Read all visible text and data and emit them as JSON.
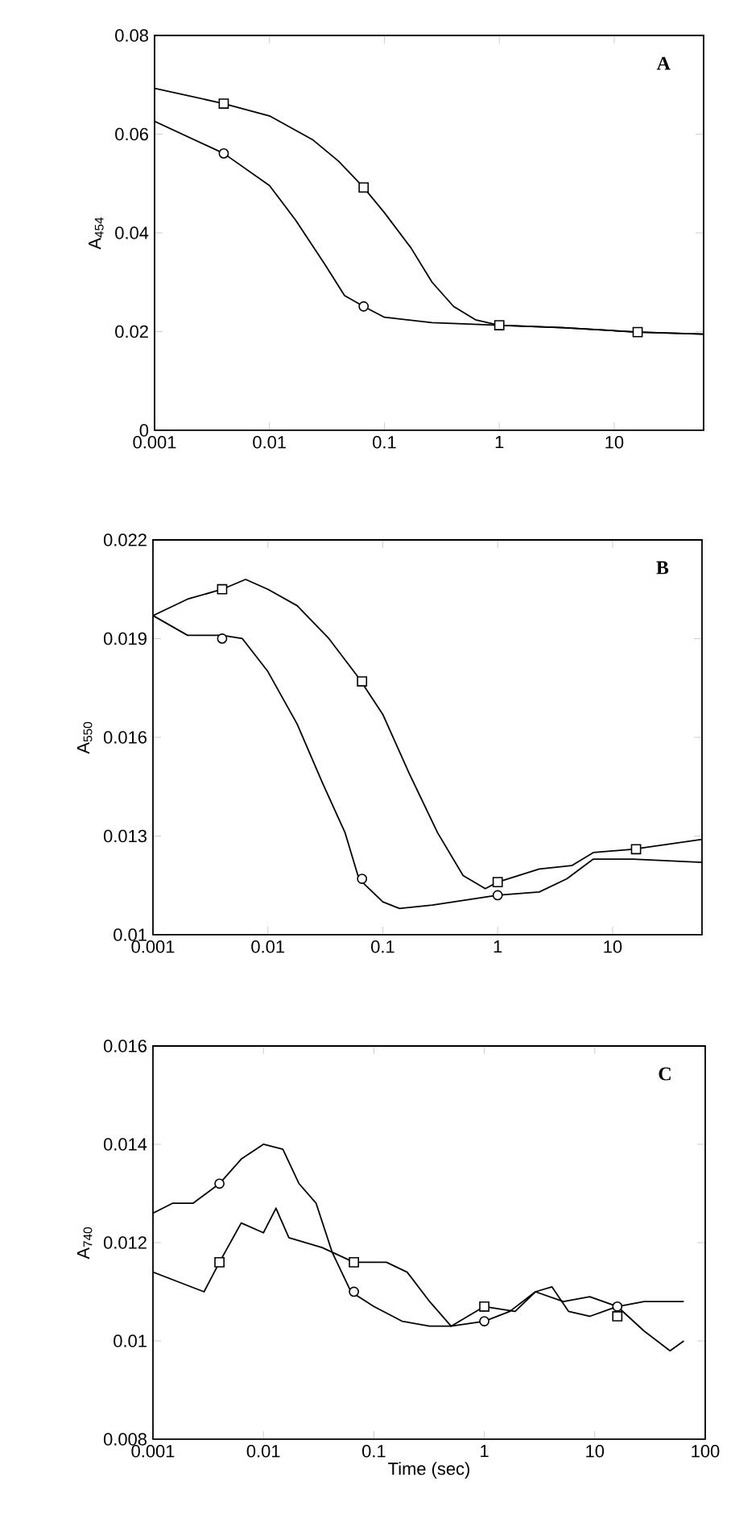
{
  "chart_data": [
    {
      "type": "line",
      "log": "x",
      "ylabel": "A$_{454}$",
      "annotations": [
        "A"
      ],
      "xlim": [
        0.001,
        60
      ],
      "xticks": [
        0.001,
        0.01,
        0.1,
        1,
        10
      ],
      "ylim": [
        0,
        0.08
      ],
      "yticks": [
        0,
        0.02,
        0.04,
        0.06,
        0.08
      ],
      "series": [
        {
          "color": "#000000",
          "x": [
            0.001,
            0.004,
            0.01,
            0.024,
            0.04,
            0.066,
            0.1,
            0.17,
            0.26,
            0.4,
            0.62,
            1,
            3.6,
            16,
            60
          ],
          "values": [
            0.0693,
            0.0662,
            0.0637,
            0.0588,
            0.0545,
            0.0492,
            0.0441,
            0.037,
            0.03,
            0.0251,
            0.0224,
            0.0213,
            0.0208,
            0.0199,
            0.0195
          ]
        },
        {
          "color": "#000000",
          "x": [
            0.001,
            0.004,
            0.01,
            0.017,
            0.03,
            0.045,
            0.066,
            0.1,
            0.26,
            1,
            3.6,
            16,
            60
          ],
          "values": [
            0.0626,
            0.0561,
            0.0496,
            0.0425,
            0.0338,
            0.0273,
            0.0251,
            0.0229,
            0.0218,
            0.0213,
            0.0208,
            0.0199,
            0.0195
          ]
        },
        {
          "type": "scatter",
          "marker": "square",
          "color": "#000000",
          "x": [
            0.004,
            0.066,
            1,
            16
          ],
          "values": [
            0.0662,
            0.0492,
            0.0213,
            0.0199
          ]
        },
        {
          "type": "scatter",
          "marker": "circle",
          "color": "#000000",
          "x": [
            0.004,
            0.066
          ],
          "values": [
            0.0561,
            0.0251
          ]
        }
      ]
    },
    {
      "type": "line",
      "log": "x",
      "ylabel": "A$_{550}$",
      "annotations": [
        "B"
      ],
      "xlim": [
        0.001,
        60
      ],
      "xticks": [
        0.001,
        0.01,
        0.1,
        1,
        10
      ],
      "ylim": [
        0.01,
        0.022
      ],
      "yticks": [
        0.01,
        0.013,
        0.016,
        0.019,
        0.022
      ],
      "series": [
        {
          "color": "#000000",
          "x": [
            0.001,
            0.002,
            0.004,
            0.0064,
            0.01,
            0.018,
            0.034,
            0.062,
            0.1,
            0.17,
            0.3,
            0.5,
            0.78,
            1,
            2.3,
            4.4,
            6.8,
            15,
            60
          ],
          "values": [
            0.0197,
            0.0202,
            0.0205,
            0.0208,
            0.0205,
            0.02,
            0.019,
            0.0178,
            0.0167,
            0.0149,
            0.0131,
            0.0118,
            0.0114,
            0.0116,
            0.012,
            0.0121,
            0.0125,
            0.0126,
            0.0129
          ]
        },
        {
          "color": "#000000",
          "x": [
            0.001,
            0.002,
            0.004,
            0.006,
            0.01,
            0.018,
            0.03,
            0.047,
            0.062,
            0.1,
            0.14,
            0.27,
            1,
            2.3,
            4,
            6.8,
            15,
            60
          ],
          "values": [
            0.0197,
            0.0191,
            0.0191,
            0.019,
            0.018,
            0.0164,
            0.0146,
            0.0131,
            0.0117,
            0.011,
            0.0108,
            0.0109,
            0.0112,
            0.0113,
            0.0117,
            0.0123,
            0.0123,
            0.0122
          ]
        },
        {
          "type": "scatter",
          "marker": "square",
          "color": "#000000",
          "x": [
            0.004,
            0.066,
            1,
            16
          ],
          "values": [
            0.0205,
            0.0177,
            0.0116,
            0.0126
          ]
        },
        {
          "type": "scatter",
          "marker": "circle",
          "color": "#000000",
          "x": [
            0.004,
            0.066,
            1
          ],
          "values": [
            0.019,
            0.0117,
            0.0112
          ]
        }
      ]
    },
    {
      "type": "line",
      "log": "x",
      "xlabel": "Time (sec)",
      "ylabel": "A$_{740}$",
      "annotations": [
        "C"
      ],
      "xlim": [
        0.001,
        100
      ],
      "xticks": [
        0.001,
        0.01,
        0.1,
        1,
        10,
        100
      ],
      "ylim": [
        0.008,
        0.016
      ],
      "yticks": [
        0.008,
        0.01,
        0.012,
        0.014,
        0.016
      ],
      "series": [
        {
          "color": "#000000",
          "x": [
            0.001,
            0.0015,
            0.0023,
            0.004,
            0.0063,
            0.01,
            0.015,
            0.021,
            0.03,
            0.042,
            0.062,
            0.1,
            0.18,
            0.32,
            0.5,
            1,
            1.7,
            2.9,
            4.1,
            5.8,
            9,
            16,
            28,
            48,
            64
          ],
          "values": [
            0.0126,
            0.0128,
            0.0128,
            0.0132,
            0.0137,
            0.014,
            0.0139,
            0.0132,
            0.0128,
            0.0118,
            0.011,
            0.0107,
            0.0104,
            0.0103,
            0.0103,
            0.0104,
            0.0106,
            0.011,
            0.0111,
            0.0106,
            0.0105,
            0.0107,
            0.0102,
            0.0098,
            0.01
          ]
        },
        {
          "color": "#000000",
          "x": [
            0.001,
            0.0017,
            0.0029,
            0.004,
            0.0063,
            0.01,
            0.013,
            0.017,
            0.034,
            0.066,
            0.13,
            0.2,
            0.32,
            0.5,
            1,
            1.9,
            2.9,
            5.2,
            9,
            16,
            28,
            64
          ],
          "values": [
            0.0114,
            0.0112,
            0.011,
            0.0116,
            0.0124,
            0.0122,
            0.0127,
            0.0121,
            0.0119,
            0.0116,
            0.0116,
            0.0114,
            0.0108,
            0.0103,
            0.0107,
            0.0106,
            0.011,
            0.0108,
            0.0109,
            0.0107,
            0.0108,
            0.0108
          ]
        },
        {
          "type": "scatter",
          "marker": "circle",
          "color": "#000000",
          "x": [
            0.004,
            0.066,
            1,
            16
          ],
          "values": [
            0.0132,
            0.011,
            0.0104,
            0.0107
          ]
        },
        {
          "type": "scatter",
          "marker": "square",
          "color": "#000000",
          "x": [
            0.004,
            0.066,
            1,
            16
          ],
          "values": [
            0.0116,
            0.0116,
            0.0107,
            0.0105
          ]
        }
      ]
    }
  ]
}
